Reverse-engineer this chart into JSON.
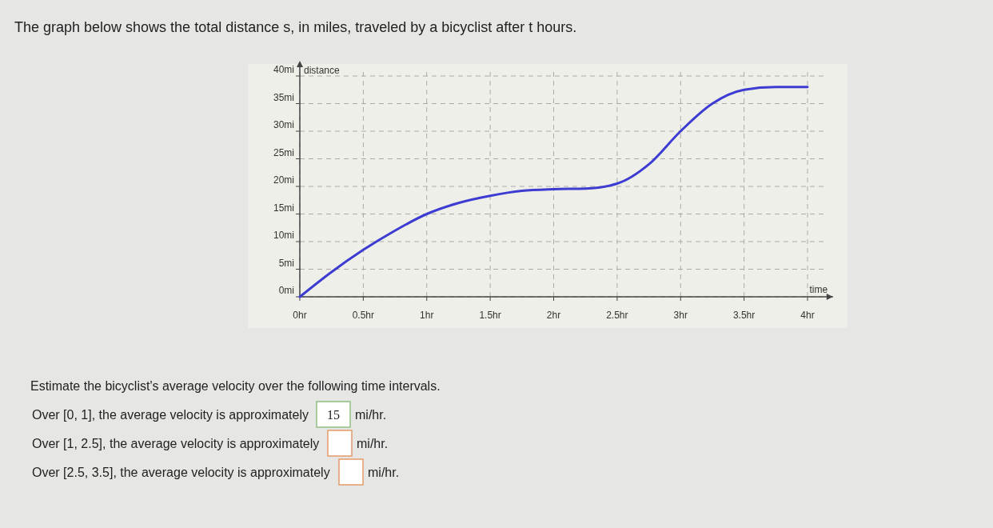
{
  "chart_data": {
    "type": "line",
    "title": "The graph below shows the total distance s, in miles, traveled by a bicyclist after t hours.",
    "xlabel": "time",
    "ylabel": "distance",
    "x": [
      0,
      0.25,
      0.5,
      0.75,
      1,
      1.25,
      1.5,
      1.75,
      2,
      2.25,
      2.5,
      2.75,
      3,
      3.25,
      3.5,
      3.75,
      4
    ],
    "series": [
      {
        "color": "#3c3cd2",
        "values": [
          0,
          4.5,
          8.5,
          12,
          15,
          17,
          18.3,
          19.2,
          19.5,
          19.6,
          20.5,
          24,
          30,
          35,
          37.5,
          38,
          38
        ]
      }
    ],
    "xlim": [
      0,
      4.15
    ],
    "ylim": [
      0,
      41
    ],
    "xticks": [
      {
        "value": 0,
        "label": "0hr"
      },
      {
        "value": 0.5,
        "label": "0.5hr"
      },
      {
        "value": 1,
        "label": "1hr"
      },
      {
        "value": 1.5,
        "label": "1.5hr"
      },
      {
        "value": 2,
        "label": "2hr"
      },
      {
        "value": 2.5,
        "label": "2.5hr"
      },
      {
        "value": 3,
        "label": "3hr"
      },
      {
        "value": 3.5,
        "label": "3.5hr"
      },
      {
        "value": 4,
        "label": "4hr"
      }
    ],
    "yticks": [
      {
        "value": 0,
        "label": "0mi"
      },
      {
        "value": 5,
        "label": "5mi"
      },
      {
        "value": 10,
        "label": "10mi"
      },
      {
        "value": 15,
        "label": "15mi"
      },
      {
        "value": 20,
        "label": "20mi"
      },
      {
        "value": 25,
        "label": "25mi"
      },
      {
        "value": 30,
        "label": "30mi"
      },
      {
        "value": 35,
        "label": "35mi"
      },
      {
        "value": 40,
        "label": "40mi"
      }
    ],
    "grid": true,
    "marker": "none",
    "line_style": "solid",
    "annotations": [
      "Estimate the bicyclist's average velocity over the following time intervals.",
      "Over [0, 1], the average velocity is approximately",
      "15",
      "mi/hr.",
      "Over [1, 2.5], the average velocity is approximately",
      "mi/hr.",
      "Over [2.5, 3.5], the average velocity is approximately",
      "mi/hr."
    ]
  }
}
